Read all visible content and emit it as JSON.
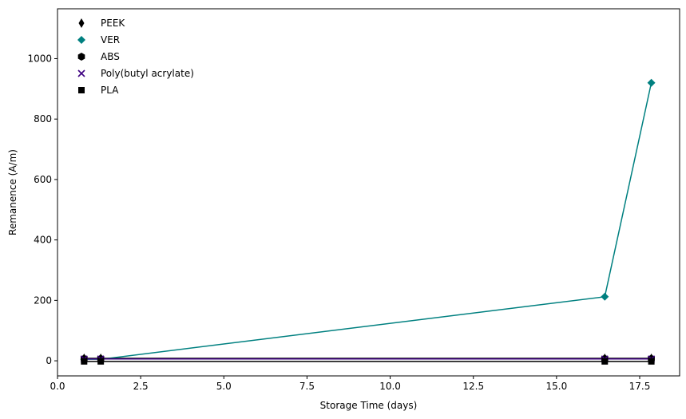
{
  "chart_data": {
    "type": "line",
    "xlabel": "Storage Time (days)",
    "ylabel": "Remanence (A/m)",
    "xlim": [
      0,
      18.7
    ],
    "ylim": [
      -50,
      1165
    ],
    "xticks": [
      0.0,
      2.5,
      5.0,
      7.5,
      10.0,
      12.5,
      15.0,
      17.5
    ],
    "xtick_labels": [
      "0.0",
      "2.5",
      "5.0",
      "7.5",
      "10.0",
      "12.5",
      "15.0",
      "17.5"
    ],
    "yticks": [
      0,
      200,
      400,
      600,
      800,
      1000
    ],
    "ytick_labels": [
      "0",
      "200",
      "400",
      "600",
      "800",
      "1000"
    ],
    "grid": false,
    "legend": "top-left",
    "series": [
      {
        "name": "PEEK",
        "marker": "thin-diamond",
        "color": "#000000",
        "x": [
          0.8,
          1.3,
          16.45,
          17.85
        ],
        "y": [
          8,
          8,
          8,
          8
        ]
      },
      {
        "name": "VER",
        "marker": "diamond",
        "color": "#008080",
        "x": [
          0.8,
          1.3,
          16.45,
          17.85
        ],
        "y": [
          5,
          5,
          212,
          920
        ]
      },
      {
        "name": "ABS",
        "marker": "hexagon",
        "color": "#000000",
        "x": [
          0.8,
          1.3,
          16.45,
          17.85
        ],
        "y": [
          7,
          7,
          7,
          7
        ]
      },
      {
        "name": "Poly(butyl acrylate)",
        "marker": "x",
        "color": "#3d0080",
        "x": [
          0.8,
          1.3,
          16.45,
          17.85
        ],
        "y": [
          6,
          6,
          6,
          6
        ]
      },
      {
        "name": "PLA",
        "marker": "square",
        "color": "#000000",
        "x": [
          0.8,
          1.3,
          16.45,
          17.85
        ],
        "y": [
          -2,
          -2,
          -2,
          -2
        ]
      }
    ]
  }
}
